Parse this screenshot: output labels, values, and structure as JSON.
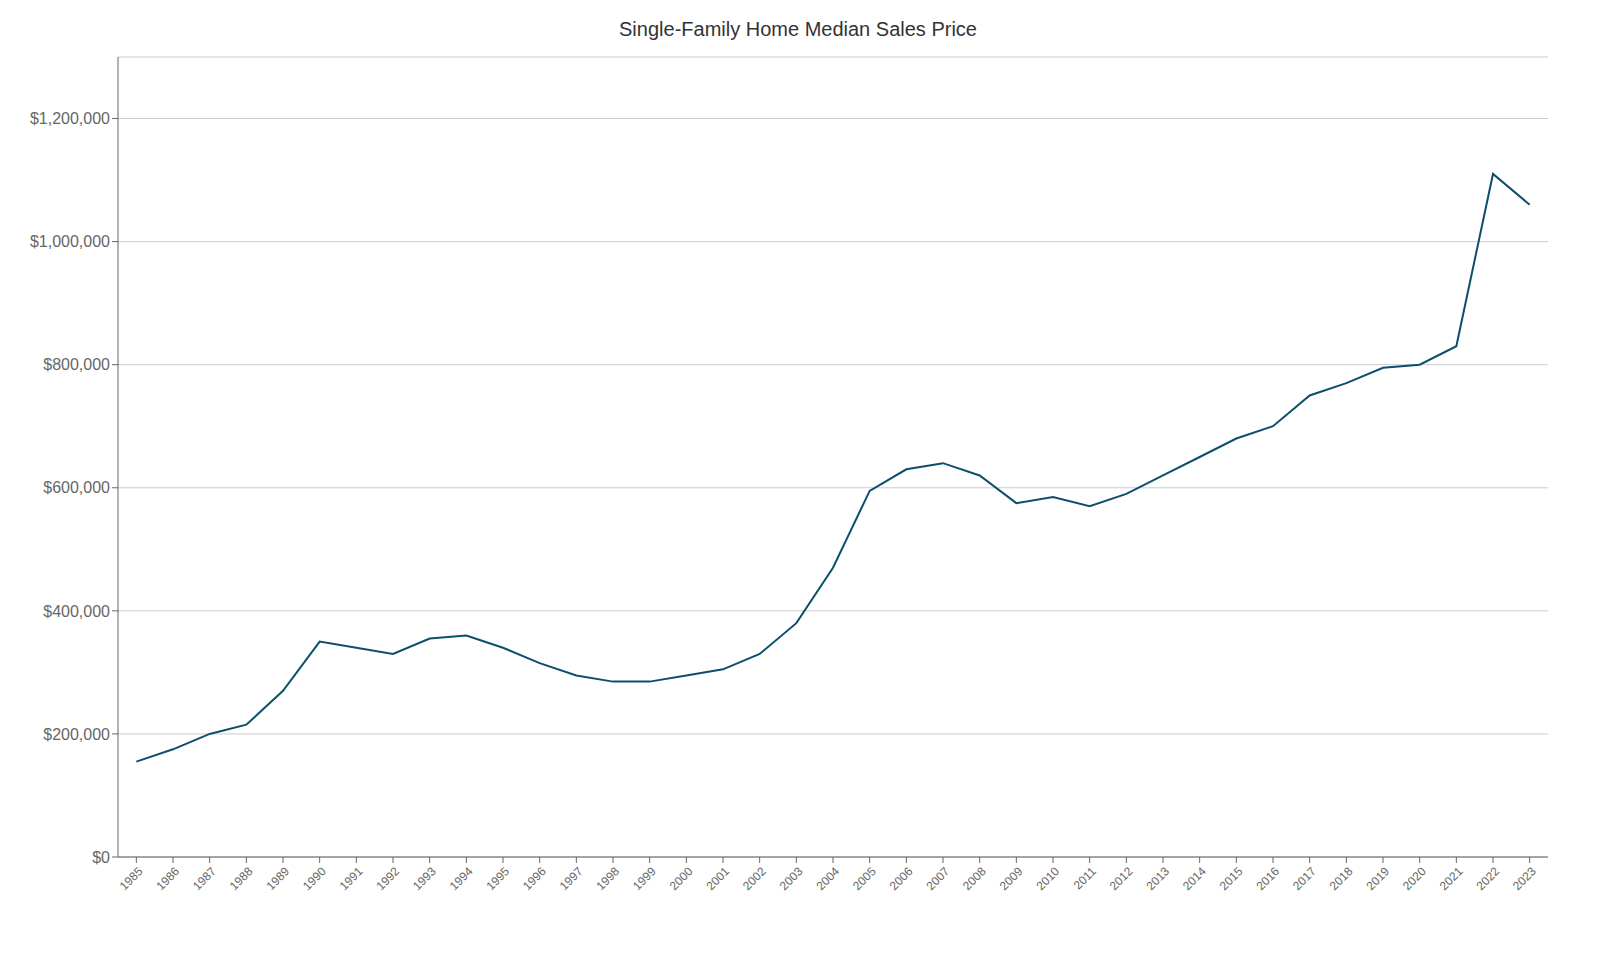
{
  "chart_data": {
    "type": "line",
    "title": "Single-Family Home Median Sales Price",
    "x": [
      1985,
      1986,
      1987,
      1988,
      1989,
      1990,
      1991,
      1992,
      1993,
      1994,
      1995,
      1996,
      1997,
      1998,
      1999,
      2000,
      2001,
      2002,
      2003,
      2004,
      2005,
      2006,
      2007,
      2008,
      2009,
      2010,
      2011,
      2012,
      2013,
      2014,
      2015,
      2016,
      2017,
      2018,
      2019,
      2020,
      2021,
      2022,
      2023
    ],
    "values": [
      155000,
      175000,
      200000,
      215000,
      270000,
      350000,
      340000,
      330000,
      355000,
      360000,
      340000,
      315000,
      295000,
      285000,
      285000,
      295000,
      305000,
      330000,
      380000,
      470000,
      595000,
      630000,
      640000,
      620000,
      575000,
      585000,
      570000,
      590000,
      620000,
      650000,
      680000,
      700000,
      750000,
      770000,
      795000,
      800000,
      830000,
      1110000,
      1060000
    ],
    "color": "#0d4f6b",
    "xlim": [
      1984.5,
      2023.5
    ],
    "xticks": [
      1985,
      1986,
      1987,
      1988,
      1989,
      1990,
      1991,
      1992,
      1993,
      1994,
      1995,
      1996,
      1997,
      1998,
      1999,
      2000,
      2001,
      2002,
      2003,
      2004,
      2005,
      2006,
      2007,
      2008,
      2009,
      2010,
      2011,
      2012,
      2013,
      2014,
      2015,
      2016,
      2017,
      2018,
      2019,
      2020,
      2021,
      2022,
      2023
    ],
    "ylim": [
      0,
      1300000
    ],
    "yticks": [
      {
        "value": 0,
        "label": "$0"
      },
      {
        "value": 200000,
        "label": "$200,000"
      },
      {
        "value": 400000,
        "label": "$400,000"
      },
      {
        "value": 600000,
        "label": "$600,000"
      },
      {
        "value": 800000,
        "label": "$800,000"
      },
      {
        "value": 1000000,
        "label": "$1,000,000"
      },
      {
        "value": 1200000,
        "label": "$1,200,000"
      }
    ],
    "grid": "y"
  }
}
